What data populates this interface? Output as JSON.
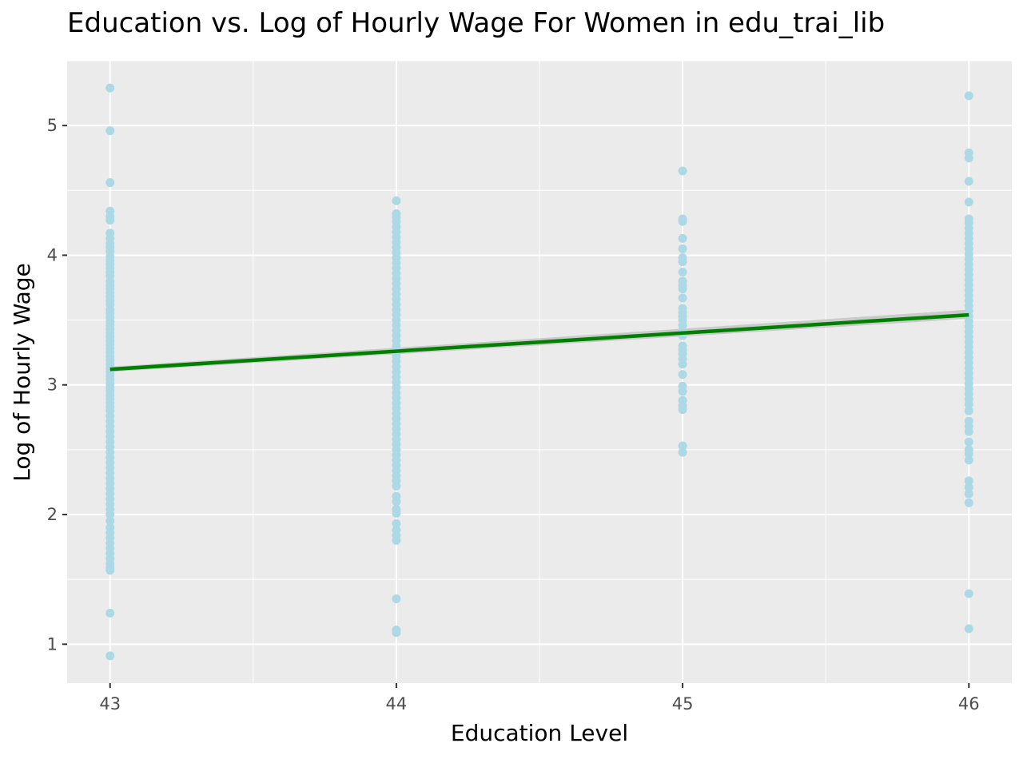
{
  "chart_data": {
    "type": "scatter",
    "title": "Education vs. Log of Hourly Wage For Women in edu_trai_lib",
    "xlabel": "Education Level",
    "ylabel": "Log of Hourly Wage",
    "xlim": [
      42.85,
      46.15
    ],
    "ylim": [
      0.7,
      5.5
    ],
    "x_ticks": [
      43,
      44,
      45,
      46
    ],
    "y_ticks": [
      1,
      2,
      3,
      4,
      5
    ],
    "grid": true,
    "legend": "none",
    "colors": {
      "panel_background": "#ebebeb",
      "grid": "#ffffff",
      "points": "#add8e6",
      "trend_line": "#008000",
      "confidence_band": "#bfbfbf"
    },
    "series": [
      {
        "type": "scatter",
        "points": [
          {
            "x": 43,
            "y": [
              5.29,
              4.96,
              4.56,
              4.34,
              4.3,
              4.27,
              4.17,
              4.13,
              4.09,
              4.06,
              4.03,
              3.99,
              3.96,
              3.93,
              3.9,
              3.87,
              3.84,
              3.8,
              3.77,
              3.74,
              3.71,
              3.68,
              3.65,
              3.62,
              3.58,
              3.55,
              3.52,
              3.49,
              3.46,
              3.43,
              3.4,
              3.37,
              3.34,
              3.31,
              3.28,
              3.25,
              3.22,
              3.19,
              3.16,
              3.13,
              3.1,
              3.07,
              3.04,
              3.01,
              2.98,
              2.95,
              2.92,
              2.89,
              2.86,
              2.83,
              2.8,
              2.76,
              2.72,
              2.68,
              2.64,
              2.6,
              2.56,
              2.52,
              2.48,
              2.44,
              2.4,
              2.36,
              2.32,
              2.28,
              2.24,
              2.2,
              2.16,
              2.12,
              2.08,
              2.04,
              2.0,
              1.95,
              1.9,
              1.86,
              1.82,
              1.78,
              1.74,
              1.7,
              1.66,
              1.62,
              1.59,
              1.57,
              1.24,
              0.91
            ]
          },
          {
            "x": 44,
            "y": [
              4.42,
              4.32,
              4.29,
              4.26,
              4.22,
              4.18,
              4.14,
              4.1,
              4.06,
              4.02,
              3.98,
              3.94,
              3.9,
              3.86,
              3.82,
              3.78,
              3.74,
              3.7,
              3.66,
              3.62,
              3.58,
              3.54,
              3.5,
              3.46,
              3.42,
              3.38,
              3.34,
              3.3,
              3.26,
              3.22,
              3.18,
              3.14,
              3.1,
              3.06,
              3.02,
              2.98,
              2.94,
              2.9,
              2.86,
              2.82,
              2.78,
              2.74,
              2.7,
              2.66,
              2.62,
              2.58,
              2.54,
              2.5,
              2.46,
              2.42,
              2.38,
              2.34,
              2.3,
              2.26,
              2.22,
              2.14,
              2.1,
              2.04,
              2.01,
              1.93,
              1.88,
              1.84,
              1.8,
              1.35,
              1.11,
              1.09
            ]
          },
          {
            "x": 45,
            "y": [
              4.65,
              4.28,
              4.26,
              4.13,
              4.05,
              3.98,
              3.95,
              3.87,
              3.8,
              3.77,
              3.74,
              3.67,
              3.59,
              3.56,
              3.53,
              3.5,
              3.46,
              3.42,
              3.38,
              3.3,
              3.27,
              3.24,
              3.2,
              3.16,
              3.08,
              2.99,
              2.95,
              2.88,
              2.84,
              2.81,
              2.53,
              2.48
            ]
          },
          {
            "x": 46,
            "y": [
              5.23,
              4.79,
              4.75,
              4.57,
              4.41,
              4.28,
              4.25,
              4.21,
              4.17,
              4.13,
              4.09,
              4.05,
              4.01,
              3.97,
              3.93,
              3.89,
              3.85,
              3.81,
              3.77,
              3.73,
              3.69,
              3.65,
              3.61,
              3.57,
              3.53,
              3.49,
              3.45,
              3.41,
              3.37,
              3.33,
              3.29,
              3.25,
              3.21,
              3.17,
              3.13,
              3.09,
              3.05,
              3.01,
              2.97,
              2.93,
              2.89,
              2.85,
              2.8,
              2.72,
              2.68,
              2.64,
              2.56,
              2.5,
              2.47,
              2.42,
              2.26,
              2.21,
              2.16,
              2.09,
              1.39,
              1.12
            ]
          }
        ]
      },
      {
        "type": "line",
        "x": [
          43,
          46
        ],
        "y": [
          3.12,
          3.54
        ],
        "band": {
          "lower": [
            3.1,
            3.51
          ],
          "upper": [
            3.14,
            3.58
          ]
        }
      }
    ]
  }
}
